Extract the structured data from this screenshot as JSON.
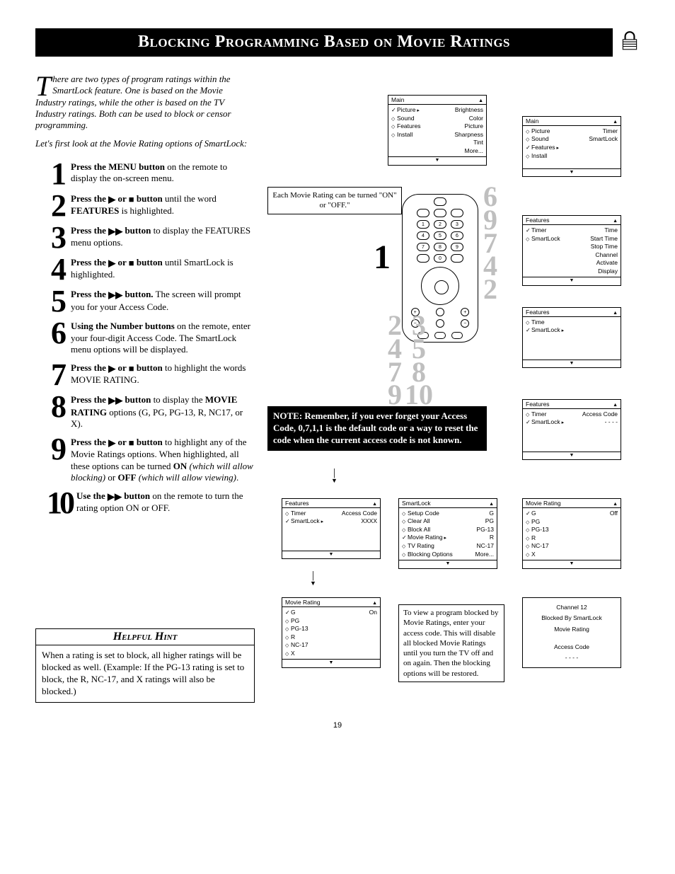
{
  "title": "Blocking Programming Based on Movie Ratings",
  "intro1": "here are two types of program ratings within the SmartLock feature. One is based on the Movie Industry ratings, while the other is based on the TV Industry ratings. Both can be used to block or censor programming.",
  "intro1_dropcap": "T",
  "intro2": "Let's first look at the Movie Rating options of SmartLock:",
  "steps": [
    {
      "n": "1",
      "html": "<b>Press the MENU button</b> on the remote to display the on-screen menu."
    },
    {
      "n": "2",
      "html": "<b>Press the <span class='tri-r'>▶</span> or <span class='sq-stop'>■</span> button</b> until the word <b>FEATURES</b> is highlighted."
    },
    {
      "n": "3",
      "html": "<b>Press the <span class='tri-rr'>▶▶</span> button</b> to display the FEATURES menu options."
    },
    {
      "n": "4",
      "html": "<b>Press the <span class='tri-r'>▶</span> or <span class='sq-stop'>■</span> button</b> until SmartLock is highlighted."
    },
    {
      "n": "5",
      "html": "<b>Press the <span class='tri-rr'>▶▶</span> button.</b> The screen will prompt you for your Access Code."
    },
    {
      "n": "6",
      "html": "<b>Using the Number buttons</b> on the remote, enter your four-digit Access Code. The SmartLock menu options will be displayed."
    },
    {
      "n": "7",
      "html": "<b>Press the <span class='tri-r'>▶</span> or <span class='sq-stop'>■</span> button</b> to highlight the words MOVIE RATING."
    },
    {
      "n": "8",
      "html": "<b>Press the <span class='tri-rr'>▶▶</span> button</b> to display the <b>MOVIE RATING</b> options (G, PG, PG-13, R, NC17, or X)."
    },
    {
      "n": "9",
      "html": "<b>Press the <span class='tri-r'>▶</span> or <span class='sq-stop'>■</span> button</b> to highlight any of the Movie Ratings options. When highlighted, all these options can be turned <b>ON</b> <i>(which will allow blocking)</i> or <b>OFF</b> <i>(which will allow viewing)</i>."
    },
    {
      "n": "10",
      "html": "<b>Use the <span class='tri-rr'>▶▶</span> button</b> on the remote to turn the rating option ON or OFF."
    }
  ],
  "hint_title": "Helpful Hint",
  "hint_body": "When a rating is set to block, all higher ratings will be blocked as well. (Example: If the PG-13 rating is set to block, the R, NC-17, and X ratings will also be blocked.)",
  "callout_each": "Each Movie Rating can be turned \"ON\" or \"OFF.\"",
  "note_text": "NOTE: Remember, if you ever forget your Access Code, 0,7,1,1 is the default code or a way to reset the code when the current access code is not known.",
  "callout_view": "To view a program blocked by Movie Ratings, enter your access code. This will disable all blocked Movie Ratings until you turn the TV off and on again. Then the blocking options will be restored.",
  "bignums_a": [
    "6",
    "9",
    "7",
    "4",
    "2"
  ],
  "bignums_b": [
    "2",
    "3",
    "4",
    "5",
    "7",
    "8",
    "9",
    "10"
  ],
  "remote_label": "1",
  "menus": {
    "main1": {
      "title": "Main",
      "rows": [
        [
          "chk rt",
          "Picture",
          "Brightness"
        ],
        [
          "dia",
          "Sound",
          "Color"
        ],
        [
          "dia",
          "Features",
          "Picture"
        ],
        [
          "dia",
          "Install",
          "Sharpness"
        ],
        [
          "",
          "",
          "Tint"
        ],
        [
          "",
          "",
          "More..."
        ]
      ]
    },
    "main2": {
      "title": "Main",
      "rows": [
        [
          "dia",
          "Picture",
          "Timer"
        ],
        [
          "dia",
          "Sound",
          "SmartLock"
        ],
        [
          "chk rt",
          "Features",
          ""
        ],
        [
          "dia",
          "Install",
          ""
        ]
      ]
    },
    "features_timer": {
      "title": "Features",
      "rows": [
        [
          "chk",
          "Timer",
          "Time"
        ],
        [
          "dia",
          "SmartLock",
          "Start Time"
        ],
        [
          "",
          "",
          "Stop Time"
        ],
        [
          "",
          "",
          "Channel"
        ],
        [
          "",
          "",
          "Activate"
        ],
        [
          "",
          "",
          "Display"
        ]
      ]
    },
    "features_time": {
      "title": "Features",
      "rows": [
        [
          "dia",
          "Time",
          ""
        ],
        [
          "chk rt",
          "SmartLock",
          ""
        ]
      ]
    },
    "features_access": {
      "title": "Features",
      "rows": [
        [
          "dia",
          "Timer",
          "Access Code"
        ],
        [
          "chk rt",
          "SmartLock",
          "- - - -"
        ]
      ]
    },
    "features_xxxx": {
      "title": "Features",
      "rows": [
        [
          "dia",
          "Timer",
          "Access Code"
        ],
        [
          "chk rt",
          "SmartLock",
          "XXXX"
        ]
      ]
    },
    "smartlock": {
      "title": "SmartLock",
      "rows": [
        [
          "dia",
          "Setup Code",
          "G"
        ],
        [
          "dia",
          "Clear All",
          "PG"
        ],
        [
          "dia",
          "Block All",
          "PG-13"
        ],
        [
          "chk rt",
          "Movie Rating",
          "R"
        ],
        [
          "dia",
          "TV Rating",
          "NC-17"
        ],
        [
          "dia",
          "Blocking Options",
          "More..."
        ]
      ]
    },
    "movierating_off": {
      "title": "Movie Rating",
      "rows": [
        [
          "chk",
          "G",
          "Off"
        ],
        [
          "dia",
          "PG",
          ""
        ],
        [
          "dia",
          "PG-13",
          ""
        ],
        [
          "dia",
          "R",
          ""
        ],
        [
          "dia",
          "NC-17",
          ""
        ],
        [
          "dia",
          "X",
          ""
        ]
      ]
    },
    "movierating_on": {
      "title": "Movie Rating",
      "rows": [
        [
          "chk",
          "G",
          "On"
        ],
        [
          "dia",
          "PG",
          ""
        ],
        [
          "dia",
          "PG-13",
          ""
        ],
        [
          "dia",
          "R",
          ""
        ],
        [
          "dia",
          "NC-17",
          ""
        ],
        [
          "dia",
          "X",
          ""
        ]
      ]
    }
  },
  "blocked": {
    "l1": "Channel 12",
    "l2": "Blocked By SmartLock",
    "l3": "Movie Rating",
    "l4": "Access Code",
    "l5": "- - - -"
  },
  "page_number": "19"
}
